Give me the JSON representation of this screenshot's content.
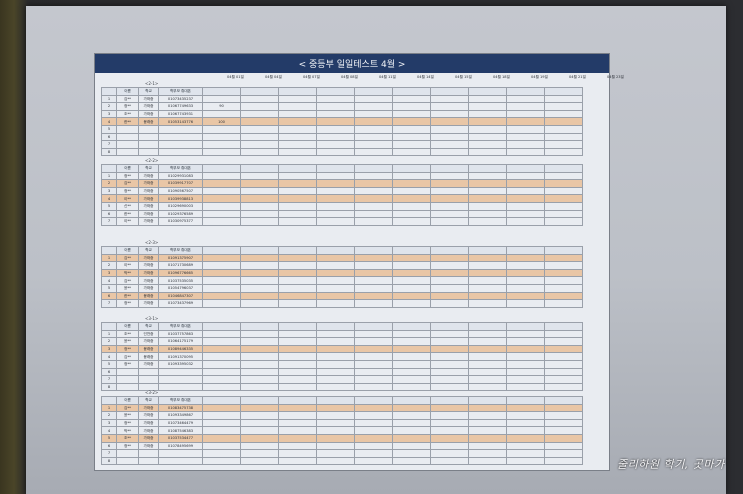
{
  "photo": {
    "description_free": true,
    "doc_title": "< 중등부 일일테스트 4월 >",
    "watermark": "줄리하원 학기, 곳마가"
  },
  "blocks": [
    {
      "label": "<2-1>",
      "dates": [
        "04월 01일",
        "04월 04일",
        "04월 07일",
        "04월 08일",
        "04월 11일",
        "04월 14일",
        "04월 15일",
        "04월 18일",
        "04월 19일",
        "04월 21일",
        "04월 23일"
      ],
      "headers": [
        "이름",
        "학교",
        "학부모 휴대폰"
      ],
      "rows": [
        {
          "num": "1",
          "hl": false,
          "cells": [
            "김**",
            "가좌중",
            "01073435237",
            "",
            "",
            "",
            "",
            "",
            "",
            "",
            "",
            "",
            "",
            ""
          ]
        },
        {
          "num": "2",
          "hl": false,
          "cells": [
            "정**",
            "가좌중",
            "01067749633",
            "90",
            "",
            "",
            "",
            "",
            "",
            "",
            "",
            "",
            "",
            ""
          ]
        },
        {
          "num": "3",
          "hl": false,
          "cells": [
            "조**",
            "가좌중",
            "01067743931",
            "",
            "",
            "",
            "",
            "",
            "",
            "",
            "",
            "",
            "",
            ""
          ]
        },
        {
          "num": "4",
          "hl": true,
          "cells": [
            "한**",
            "봉래중",
            "01053143776",
            "100",
            "",
            "",
            "",
            "",
            "",
            "",
            "",
            "",
            "",
            ""
          ]
        },
        {
          "num": "5",
          "hl": false,
          "cells": [
            "",
            "",
            "",
            "",
            "",
            "",
            "",
            "",
            "",
            "",
            "",
            "",
            "",
            ""
          ]
        },
        {
          "num": "6",
          "hl": false,
          "cells": [
            "",
            "",
            "",
            "",
            "",
            "",
            "",
            "",
            "",
            "",
            "",
            "",
            "",
            ""
          ]
        },
        {
          "num": "7",
          "hl": false,
          "cells": [
            "",
            "",
            "",
            "",
            "",
            "",
            "",
            "",
            "",
            "",
            "",
            "",
            "",
            ""
          ]
        },
        {
          "num": "8",
          "hl": false,
          "cells": [
            "",
            "",
            "",
            "",
            "",
            "",
            "",
            "",
            "",
            "",
            "",
            "",
            "",
            ""
          ]
        }
      ]
    },
    {
      "label": "<2-2>",
      "dates": [],
      "headers": [
        "이름",
        "학교",
        "학부모 휴대폰"
      ],
      "rows": [
        {
          "num": "1",
          "hl": false,
          "cells": [
            "정**",
            "가좌중",
            "01029931083",
            "",
            "",
            "",
            "",
            "",
            "",
            "",
            "",
            "",
            "",
            ""
          ]
        },
        {
          "num": "2",
          "hl": true,
          "cells": [
            "김**",
            "가좌중",
            "01039917707",
            "",
            "",
            "",
            "",
            "",
            "",
            "",
            "",
            "",
            "",
            ""
          ]
        },
        {
          "num": "3",
          "hl": false,
          "cells": [
            "정**",
            "가좌중",
            "01090567507",
            "",
            "",
            "",
            "",
            "",
            "",
            "",
            "",
            "",
            "",
            ""
          ]
        },
        {
          "num": "4",
          "hl": true,
          "cells": [
            "이**",
            "가좌중",
            "01039938813",
            "",
            "",
            "",
            "",
            "",
            "",
            "",
            "",
            "",
            "",
            ""
          ]
        },
        {
          "num": "5",
          "hl": false,
          "cells": [
            "신**",
            "가좌중",
            "01029690003",
            "",
            "",
            "",
            "",
            "",
            "",
            "",
            "",
            "",
            "",
            ""
          ]
        },
        {
          "num": "6",
          "hl": false,
          "cells": [
            "한**",
            "가좌중",
            "01029376589",
            "",
            "",
            "",
            "",
            "",
            "",
            "",
            "",
            "",
            "",
            ""
          ]
        },
        {
          "num": "7",
          "hl": false,
          "cells": [
            "이**",
            "가좌중",
            "01030975377",
            "",
            "",
            "",
            "",
            "",
            "",
            "",
            "",
            "",
            "",
            ""
          ]
        }
      ]
    },
    {
      "label": "<2-3>",
      "dates": [],
      "headers": [
        "이름",
        "학교",
        "학부모 휴대폰"
      ],
      "rows": [
        {
          "num": "1",
          "hl": true,
          "cells": [
            "김**",
            "가좌중",
            "01091375907",
            "",
            "",
            "",
            "",
            "",
            "",
            "",
            "",
            "",
            "",
            ""
          ]
        },
        {
          "num": "2",
          "hl": false,
          "cells": [
            "이**",
            "가좌중",
            "01071730689",
            "",
            "",
            "",
            "",
            "",
            "",
            "",
            "",
            "",
            "",
            ""
          ]
        },
        {
          "num": "3",
          "hl": true,
          "cells": [
            "박**",
            "가좌중",
            "01096776665",
            "",
            "",
            "",
            "",
            "",
            "",
            "",
            "",
            "",
            "",
            ""
          ]
        },
        {
          "num": "4",
          "hl": false,
          "cells": [
            "김**",
            "가좌중",
            "01037535035",
            "",
            "",
            "",
            "",
            "",
            "",
            "",
            "",
            "",
            "",
            ""
          ]
        },
        {
          "num": "5",
          "hl": false,
          "cells": [
            "윤**",
            "가좌중",
            "01054796037",
            "",
            "",
            "",
            "",
            "",
            "",
            "",
            "",
            "",
            "",
            ""
          ]
        },
        {
          "num": "6",
          "hl": true,
          "cells": [
            "한**",
            "봉래중",
            "01046847307",
            "",
            "",
            "",
            "",
            "",
            "",
            "",
            "",
            "",
            "",
            ""
          ]
        },
        {
          "num": "7",
          "hl": false,
          "cells": [
            "정**",
            "가좌중",
            "01073437969",
            "",
            "",
            "",
            "",
            "",
            "",
            "",
            "",
            "",
            "",
            ""
          ]
        }
      ]
    },
    {
      "label": "<3-1>",
      "dates": [],
      "headers": [
        "이름",
        "학교",
        "학부모 휴대폰"
      ],
      "rows": [
        {
          "num": "1",
          "hl": false,
          "cells": [
            "조**",
            "인천중",
            "01037757863",
            "",
            "",
            "",
            "",
            "",
            "",
            "",
            "",
            "",
            "",
            ""
          ]
        },
        {
          "num": "2",
          "hl": false,
          "cells": [
            "윤**",
            "가좌중",
            "01064175179",
            "",
            "",
            "",
            "",
            "",
            "",
            "",
            "",
            "",
            "",
            ""
          ]
        },
        {
          "num": "3",
          "hl": true,
          "cells": [
            "정**",
            "봉래중",
            "01089446335",
            "",
            "",
            "",
            "",
            "",
            "",
            "",
            "",
            "",
            "",
            ""
          ]
        },
        {
          "num": "4",
          "hl": false,
          "cells": [
            "김**",
            "봉래중",
            "01091370095",
            "",
            "",
            "",
            "",
            "",
            "",
            "",
            "",
            "",
            "",
            ""
          ]
        },
        {
          "num": "5",
          "hl": false,
          "cells": [
            "정**",
            "가좌중",
            "01093395032",
            "",
            "",
            "",
            "",
            "",
            "",
            "",
            "",
            "",
            "",
            ""
          ]
        },
        {
          "num": "6",
          "hl": false,
          "cells": [
            "",
            "",
            "",
            "",
            "",
            "",
            "",
            "",
            "",
            "",
            "",
            "",
            "",
            ""
          ]
        },
        {
          "num": "7",
          "hl": false,
          "cells": [
            "",
            "",
            "",
            "",
            "",
            "",
            "",
            "",
            "",
            "",
            "",
            "",
            "",
            ""
          ]
        },
        {
          "num": "8",
          "hl": false,
          "cells": [
            "",
            "",
            "",
            "",
            "",
            "",
            "",
            "",
            "",
            "",
            "",
            "",
            "",
            ""
          ]
        }
      ]
    },
    {
      "label": "<3-2>",
      "dates": [],
      "headers": [
        "이름",
        "학교",
        "학부모 휴대폰"
      ],
      "rows": [
        {
          "num": "1",
          "hl": true,
          "cells": [
            "김**",
            "가좌중",
            "01083475738",
            "",
            "",
            "",
            "",
            "",
            "",
            "",
            "",
            "",
            "",
            ""
          ]
        },
        {
          "num": "2",
          "hl": false,
          "cells": [
            "윤**",
            "가좌중",
            "01093349867",
            "",
            "",
            "",
            "",
            "",
            "",
            "",
            "",
            "",
            "",
            ""
          ]
        },
        {
          "num": "3",
          "hl": false,
          "cells": [
            "정**",
            "가좌중",
            "01073464479",
            "",
            "",
            "",
            "",
            "",
            "",
            "",
            "",
            "",
            "",
            ""
          ]
        },
        {
          "num": "4",
          "hl": false,
          "cells": [
            "박**",
            "가좌중",
            "01087546383",
            "",
            "",
            "",
            "",
            "",
            "",
            "",
            "",
            "",
            "",
            ""
          ]
        },
        {
          "num": "5",
          "hl": true,
          "cells": [
            "조**",
            "가좌중",
            "01037534477",
            "",
            "",
            "",
            "",
            "",
            "",
            "",
            "",
            "",
            "",
            ""
          ]
        },
        {
          "num": "6",
          "hl": false,
          "cells": [
            "정**",
            "가좌중",
            "01078495699",
            "",
            "",
            "",
            "",
            "",
            "",
            "",
            "",
            "",
            "",
            ""
          ]
        },
        {
          "num": "7",
          "hl": false,
          "cells": [
            "",
            "",
            "",
            "",
            "",
            "",
            "",
            "",
            "",
            "",
            "",
            "",
            "",
            ""
          ]
        },
        {
          "num": "8",
          "hl": false,
          "cells": [
            "",
            "",
            "",
            "",
            "",
            "",
            "",
            "",
            "",
            "",
            "",
            "",
            "",
            ""
          ]
        }
      ]
    }
  ]
}
